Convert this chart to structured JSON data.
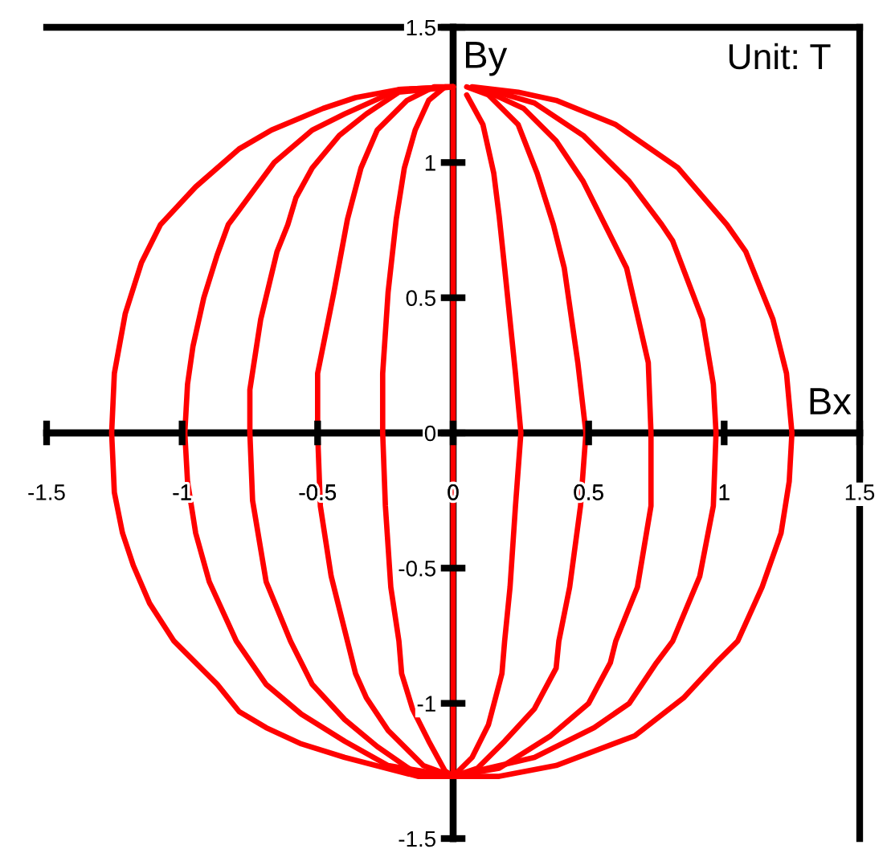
{
  "chart_data": {
    "type": "line",
    "xlabel": "Bx",
    "ylabel": "By",
    "annotations": [
      "Unit: T"
    ],
    "xlim": [
      -1.5,
      1.5
    ],
    "ylim": [
      -1.5,
      1.5
    ],
    "xticks": [
      -1.5,
      -1,
      -0.5,
      0,
      0.5,
      1,
      1.5
    ],
    "yticks": [
      -1.5,
      -1,
      -0.5,
      0,
      0.5,
      1,
      1.5
    ],
    "line_style": "solid",
    "series": [
      {
        "color": "#ff0000",
        "x": [
          0,
          -0.2,
          -0.36,
          -0.48,
          -0.67,
          -0.79,
          -0.95,
          -1.08,
          -1.15,
          -1.21,
          -1.25,
          -1.26,
          -1.25,
          -1.22,
          -1.18,
          -1.12,
          -1.03,
          -0.95,
          -0.87,
          -0.79,
          -0.69,
          -0.56,
          -0.4,
          -0.13,
          0,
          0.17,
          0.38,
          0.67,
          0.85,
          0.97,
          1.05,
          1.14,
          1.21,
          1.24,
          1.25,
          1.23,
          1.18,
          1.08,
          1.01,
          0.83,
          0.6,
          0.38,
          0.24,
          0.07
        ],
        "values": [
          1.28,
          1.27,
          1.24,
          1.2,
          1.12,
          1.05,
          0.91,
          0.77,
          0.63,
          0.44,
          0.22,
          0,
          -0.22,
          -0.37,
          -0.49,
          -0.63,
          -0.77,
          -0.85,
          -0.93,
          -1.03,
          -1.09,
          -1.15,
          -1.2,
          -1.27,
          -1.27,
          -1.27,
          -1.23,
          -1.12,
          -0.98,
          -0.85,
          -0.77,
          -0.57,
          -0.37,
          -0.18,
          0,
          0.22,
          0.42,
          0.67,
          0.77,
          0.98,
          1.14,
          1.23,
          1.26,
          1.28
        ]
      },
      {
        "color": "#ff0000",
        "x": [
          0,
          -0.2,
          -0.4,
          -0.52,
          -0.66,
          -0.8,
          -0.83,
          -0.87,
          -0.92,
          -0.96,
          -0.98,
          -0.99,
          -0.98,
          -0.95,
          -0.9,
          -0.8,
          -0.69,
          -0.56,
          -0.4,
          -0.24,
          0,
          0.3,
          0.52,
          0.65,
          0.75,
          0.81,
          0.91,
          0.96,
          0.97,
          0.96,
          0.92,
          0.81,
          0.77,
          0.65,
          0.48,
          0.3,
          0.13
        ],
        "values": [
          1.28,
          1.27,
          1.18,
          1.12,
          1.0,
          0.81,
          0.77,
          0.66,
          0.5,
          0.32,
          0.18,
          0,
          -0.18,
          -0.37,
          -0.55,
          -0.77,
          -0.93,
          -1.04,
          -1.14,
          -1.23,
          -1.27,
          -1.2,
          -1.09,
          -1.0,
          -0.85,
          -0.77,
          -0.53,
          -0.27,
          0,
          0.18,
          0.42,
          0.71,
          0.77,
          0.93,
          1.1,
          1.22,
          1.27
        ]
      },
      {
        "color": "#ff0000",
        "x": [
          0,
          -0.2,
          -0.32,
          -0.42,
          -0.52,
          -0.58,
          -0.61,
          -0.65,
          -0.71,
          -0.75,
          -0.75,
          -0.74,
          -0.69,
          -0.6,
          -0.52,
          -0.4,
          -0.28,
          -0.15,
          0,
          0.17,
          0.36,
          0.5,
          0.58,
          0.6,
          0.68,
          0.73,
          0.73,
          0.72,
          0.64,
          0.56,
          0.48,
          0.38,
          0.26,
          0.11
        ],
        "values": [
          1.28,
          1.26,
          1.18,
          1.1,
          0.98,
          0.87,
          0.77,
          0.67,
          0.42,
          0.16,
          0,
          -0.25,
          -0.55,
          -0.77,
          -0.93,
          -1.06,
          -1.16,
          -1.25,
          -1.27,
          -1.24,
          -1.12,
          -1.0,
          -0.85,
          -0.77,
          -0.57,
          -0.27,
          0,
          0.26,
          0.61,
          0.77,
          0.93,
          1.08,
          1.2,
          1.27
        ]
      },
      {
        "color": "#ff0000",
        "x": [
          0,
          -0.07,
          -0.17,
          -0.28,
          -0.34,
          -0.39,
          -0.44,
          -0.5,
          -0.5,
          -0.49,
          -0.45,
          -0.39,
          -0.36,
          -0.32,
          -0.24,
          -0.11,
          0,
          0.09,
          0.19,
          0.3,
          0.38,
          0.39,
          0.43,
          0.47,
          0.49,
          0.46,
          0.41,
          0.37,
          0.31,
          0.24,
          0.13,
          0.05
        ],
        "values": [
          1.28,
          1.28,
          1.23,
          1.12,
          0.98,
          0.79,
          0.52,
          0.22,
          0,
          -0.27,
          -0.53,
          -0.77,
          -0.89,
          -0.98,
          -1.1,
          -1.23,
          -1.27,
          -1.24,
          -1.14,
          -1.02,
          -0.87,
          -0.77,
          -0.57,
          -0.27,
          0,
          0.26,
          0.61,
          0.77,
          0.96,
          1.14,
          1.25,
          1.28
        ]
      },
      {
        "color": "#ff0000",
        "x": [
          0,
          -0.03,
          -0.09,
          -0.14,
          -0.18,
          -0.21,
          -0.24,
          -0.26,
          -0.26,
          -0.25,
          -0.23,
          -0.2,
          -0.19,
          -0.15,
          -0.09,
          -0.03,
          0,
          0.07,
          0.13,
          0.18,
          0.19,
          0.21,
          0.23,
          0.25,
          0.23,
          0.19,
          0.17,
          0.15,
          0.11,
          0.05
        ],
        "values": [
          1.28,
          1.28,
          1.23,
          1.12,
          0.98,
          0.79,
          0.52,
          0.22,
          0,
          -0.27,
          -0.57,
          -0.77,
          -0.89,
          -1.02,
          -1.14,
          -1.25,
          -1.27,
          -1.2,
          -1.08,
          -0.89,
          -0.77,
          -0.57,
          -0.27,
          0,
          0.22,
          0.61,
          0.8,
          0.96,
          1.14,
          1.25
        ]
      },
      {
        "color": "#ff0000",
        "x": [
          0,
          0
        ],
        "values": [
          1.28,
          -1.27
        ]
      }
    ]
  }
}
